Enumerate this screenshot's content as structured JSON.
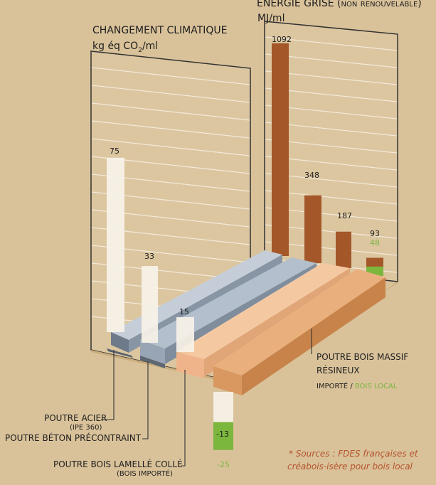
{
  "chart_data": [
    {
      "type": "bar",
      "title": "CHANGEMENT CLIMATIQUE",
      "ylabel_prefix": "kg éq CO",
      "ylabel_sub": "2",
      "ylabel_suffix": "/ml",
      "categories": [
        "POUTRE ACIER",
        "POUTRE BÉTON PRÉCONTRAINT",
        "POUTRE BOIS LAMELLÉ COLLÉ",
        "POUTRE BOIS MASSIF RÉSINEUX"
      ],
      "series": [
        {
          "name": "IMPORTÉ",
          "values": [
            75,
            33,
            15,
            -13
          ]
        },
        {
          "name": "BOIS LOCAL",
          "values": [
            null,
            null,
            null,
            -25
          ]
        }
      ],
      "labels": [
        "75",
        "33",
        "15",
        "-13",
        "-25"
      ]
    },
    {
      "type": "bar",
      "title": "ÉNERGIE GRISE (non renouvelable)",
      "ylabel": "MJ/ml",
      "categories": [
        "POUTRE ACIER",
        "POUTRE BÉTON PRÉCONTRAINT",
        "POUTRE BOIS LAMELLÉ COLLÉ",
        "POUTRE BOIS MASSIF RÉSINEUX"
      ],
      "series": [
        {
          "name": "IMPORTÉ",
          "values": [
            1092,
            348,
            187,
            93
          ]
        },
        {
          "name": "BOIS LOCAL",
          "values": [
            null,
            null,
            null,
            48
          ]
        }
      ],
      "labels": [
        "1092",
        "348",
        "187",
        "93",
        "48"
      ]
    }
  ],
  "labels": {
    "acier": "POUTRE ACIER",
    "acier_sub": "(IPE 360)",
    "beton": "POUTRE BÉTON PRÉCONTRAINT",
    "lamelle": "POUTRE BOIS LAMELLÉ COLLÉ",
    "lamelle_sub": "(BOIS IMPORTÉ)",
    "massif_1": "POUTRE BOIS MASSIF",
    "massif_2": "RÉSINEUX",
    "importe": "IMPORTÉ",
    "slash": " / ",
    "bois_local": "BOIS LOCAL"
  },
  "sources": {
    "line1": "* Sources : FDES françaises et",
    "line2": "créabois-isère pour bois local"
  },
  "colors": {
    "background": "#d9c29a",
    "brown": "#a4582a",
    "green": "#7bb63d",
    "white_bar": "#f7f2e8",
    "steel": "#a7b3c0",
    "wood_light": "#efb98d",
    "wood_dark": "#cf8d56"
  }
}
